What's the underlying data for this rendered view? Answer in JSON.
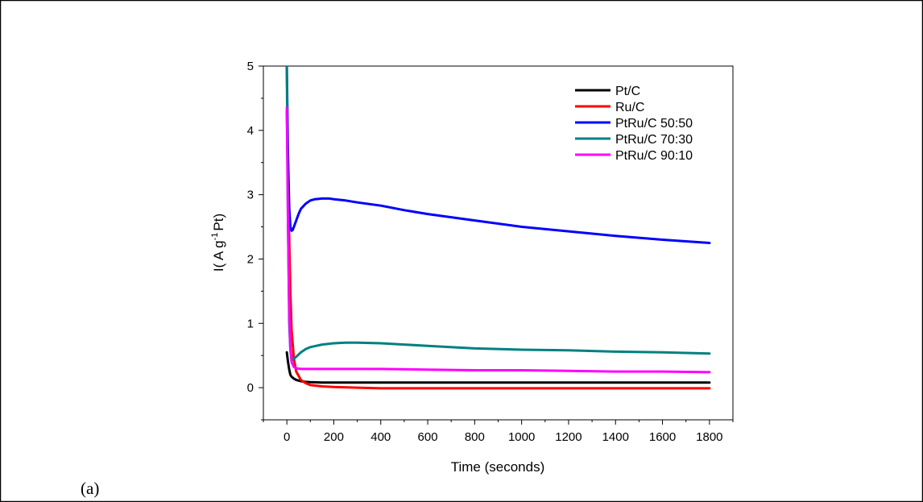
{
  "panel_label": "(a)",
  "chart_data": {
    "type": "line",
    "xlabel": "Time (seconds)",
    "ylabel_parts": [
      "I( A g",
      "-1",
      "Pt)"
    ],
    "xlim": [
      -100,
      1900
    ],
    "ylim": [
      -0.5,
      5
    ],
    "x_ticks": [
      0,
      200,
      400,
      600,
      800,
      1000,
      1200,
      1400,
      1600,
      1800
    ],
    "y_ticks": [
      0,
      1,
      2,
      3,
      4,
      5
    ],
    "legend_position": "top-right",
    "series": [
      {
        "name": "Pt/C",
        "color": "#000000",
        "x": [
          0,
          5,
          10,
          15,
          20,
          30,
          40,
          60,
          80,
          100,
          150,
          200,
          300,
          400,
          600,
          800,
          1000,
          1200,
          1400,
          1600,
          1800
        ],
        "y": [
          0.55,
          0.4,
          0.28,
          0.2,
          0.17,
          0.14,
          0.12,
          0.1,
          0.09,
          0.085,
          0.08,
          0.08,
          0.08,
          0.08,
          0.08,
          0.08,
          0.08,
          0.08,
          0.08,
          0.08,
          0.08
        ]
      },
      {
        "name": "Ru/C",
        "color": "#ff0000",
        "x": [
          0,
          5,
          10,
          15,
          20,
          30,
          40,
          60,
          80,
          100,
          150,
          200,
          300,
          400,
          600,
          800,
          1000,
          1200,
          1400,
          1600,
          1800
        ],
        "y": [
          4.3,
          3.2,
          2.3,
          1.5,
          0.9,
          0.45,
          0.25,
          0.12,
          0.07,
          0.04,
          0.02,
          0.01,
          0.0,
          -0.01,
          -0.01,
          -0.01,
          -0.01,
          -0.01,
          -0.01,
          -0.01,
          -0.01
        ]
      },
      {
        "name": "PtRu/C 50:50",
        "color": "#0000ff",
        "x": [
          0,
          5,
          10,
          15,
          20,
          25,
          30,
          40,
          50,
          60,
          80,
          100,
          120,
          150,
          180,
          200,
          250,
          300,
          400,
          500,
          600,
          800,
          1000,
          1200,
          1400,
          1600,
          1800
        ],
        "y": [
          5.0,
          3.6,
          2.8,
          2.5,
          2.44,
          2.45,
          2.5,
          2.6,
          2.7,
          2.78,
          2.86,
          2.91,
          2.93,
          2.94,
          2.94,
          2.93,
          2.91,
          2.88,
          2.83,
          2.76,
          2.7,
          2.6,
          2.5,
          2.43,
          2.36,
          2.3,
          2.25
        ]
      },
      {
        "name": "PtRu/C 70:30",
        "color": "#008080",
        "x": [
          0,
          5,
          10,
          15,
          20,
          25,
          30,
          40,
          60,
          80,
          100,
          150,
          200,
          250,
          300,
          400,
          500,
          600,
          800,
          1000,
          1200,
          1400,
          1600,
          1800
        ],
        "y": [
          5.0,
          2.6,
          1.0,
          0.6,
          0.45,
          0.43,
          0.45,
          0.48,
          0.55,
          0.6,
          0.63,
          0.67,
          0.69,
          0.7,
          0.7,
          0.69,
          0.67,
          0.65,
          0.61,
          0.59,
          0.58,
          0.56,
          0.55,
          0.53
        ]
      },
      {
        "name": "PtRu/C 90:10",
        "color": "#ff00ff",
        "x": [
          0,
          5,
          10,
          15,
          20,
          30,
          40,
          60,
          80,
          100,
          150,
          200,
          300,
          400,
          600,
          800,
          1000,
          1200,
          1400,
          1600,
          1800
        ],
        "y": [
          4.35,
          2.5,
          1.2,
          0.6,
          0.4,
          0.32,
          0.3,
          0.29,
          0.29,
          0.29,
          0.29,
          0.29,
          0.29,
          0.29,
          0.28,
          0.27,
          0.27,
          0.26,
          0.25,
          0.25,
          0.24
        ]
      }
    ]
  }
}
